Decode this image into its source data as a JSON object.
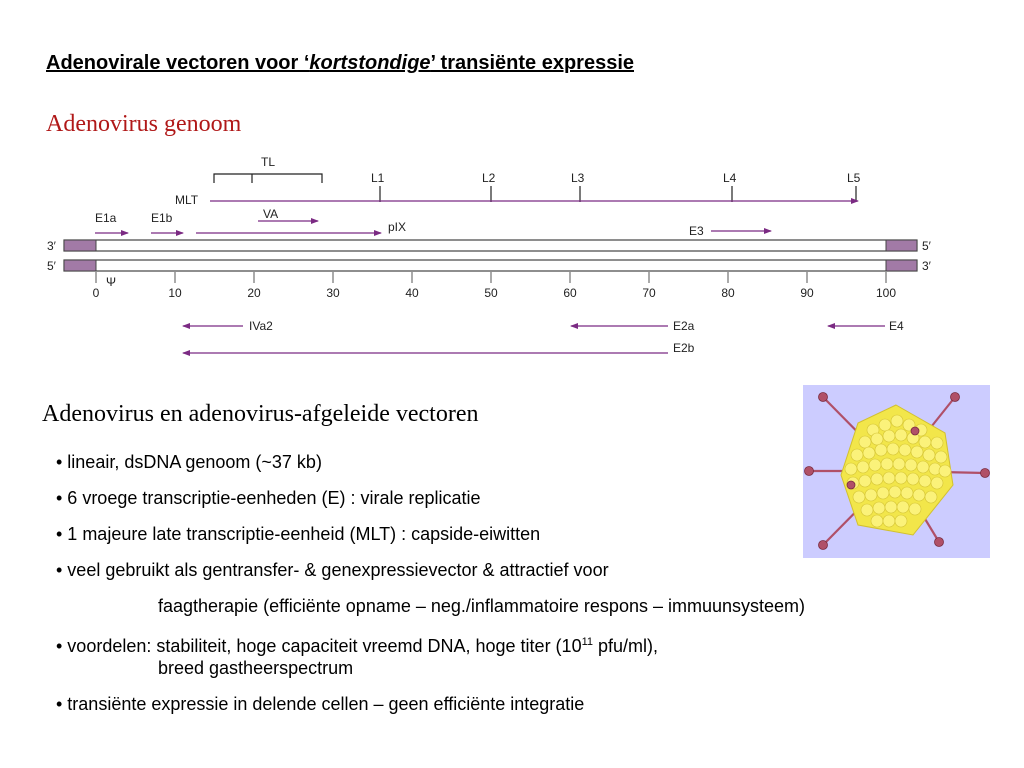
{
  "title": {
    "part1": "Adenovirale vectoren voor ‘",
    "emph": "kortstondige",
    "part2": "’ transiënte expressie"
  },
  "genome_heading": "Adenovirus genoom",
  "genome_map": {
    "labels": {
      "tl": "TL",
      "mlt": "MLT",
      "va": "VA",
      "pix": "pIX",
      "e1a": "E1a",
      "e1b": "E1b",
      "e3": "E3",
      "iva2": "IVa2",
      "e2a": "E2a",
      "e2b": "E2b",
      "e4": "E4",
      "l1": "L1",
      "l2": "L2",
      "l3": "L3",
      "l4": "L4",
      "l5": "L5",
      "end_3_left": "3′",
      "end_5_left": "5′",
      "end_5_right": "5′",
      "end_3_right": "3′",
      "psi": "Ψ"
    },
    "scale_ticks": [
      "0",
      "10",
      "20",
      "30",
      "40",
      "50",
      "60",
      "70",
      "80",
      "90",
      "100"
    ],
    "colors": {
      "arrow": "#7b2a83",
      "end_box": "#a27aa6",
      "strand": "#444444"
    }
  },
  "vectors_heading": "Adenovirus en adenovirus-afgeleide vectoren",
  "bullets": [
    {
      "text": "• lineair, dsDNA genoom (~37 kb)"
    },
    {
      "text": "• 6 vroege transcriptie-eenheden (E) : virale replicatie"
    },
    {
      "text": "• 1 majeure late transcriptie-eenheid (MLT) : capside-eiwitten"
    },
    {
      "text": "• veel gebruikt als gentransfer- & genexpressievector & attractief voor",
      "cont": "faagtherapie (efficiënte opname  –  neg./inflammatoire respons – immuunsysteem)"
    },
    {
      "text_pre": "• voordelen: stabiliteit, hoge capaciteit vreemd DNA, hoge titer (10",
      "sup": "11",
      "text_post": " pfu/ml),",
      "cont": "breed gastheerspectrum"
    },
    {
      "text": "• transiënte expressie in delende cellen  –  geen efficiënte integratie"
    }
  ],
  "image": {
    "icon": "adenovirus-particle-icon",
    "background": "#ccccff",
    "capsid": "#f2e64a",
    "fiber": "#b05068"
  }
}
